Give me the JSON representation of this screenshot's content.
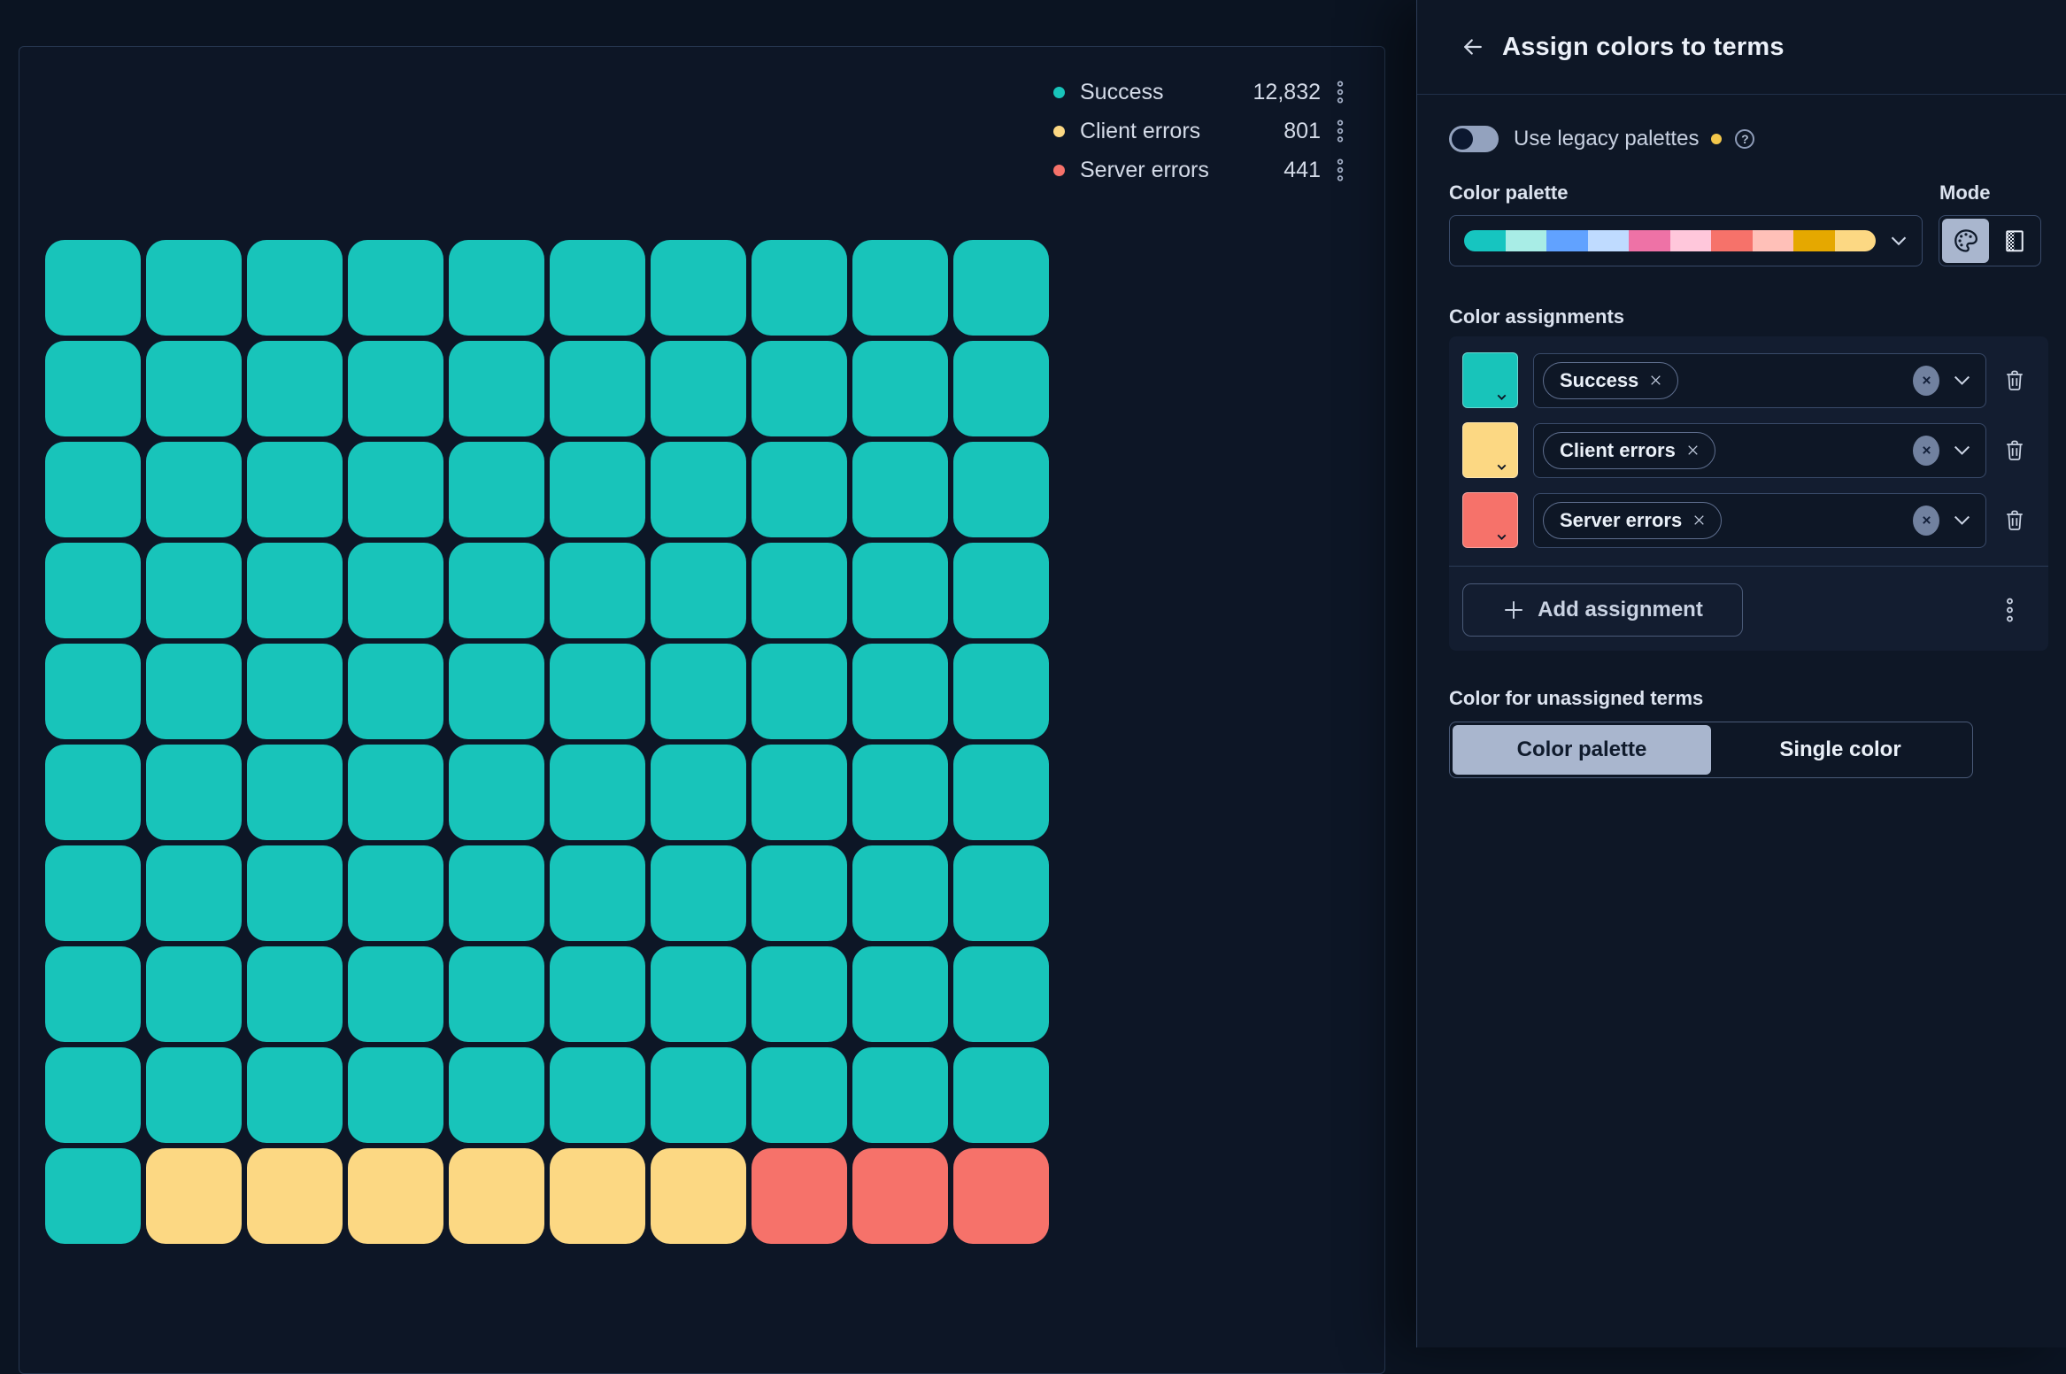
{
  "chart_data": {
    "type": "waffle",
    "title": "",
    "categories": [
      "Success",
      "Client errors",
      "Server errors"
    ],
    "values": [
      12832,
      801,
      441
    ],
    "value_labels": [
      "12,832",
      "801",
      "441"
    ],
    "colors": [
      "#18C4BA",
      "#FCD883",
      "#F6726A"
    ],
    "grid": {
      "rows": 10,
      "cols": 10,
      "cell_counts": [
        91,
        6,
        3
      ],
      "fill_order": "row-major-top-left"
    },
    "legend_position": "top-right"
  },
  "chart": {
    "legend": [
      {
        "label": "Success",
        "value": "12,832",
        "color": "#18C4BA"
      },
      {
        "label": "Client errors",
        "value": "801",
        "color": "#FCD883"
      },
      {
        "label": "Server errors",
        "value": "441",
        "color": "#F6726A"
      }
    ]
  },
  "flyout": {
    "title": "Assign colors to terms",
    "back_icon": "arrow-left",
    "legacy": {
      "label": "Use legacy palettes",
      "state": "off",
      "modified_dot_color": "#F3C74B",
      "help_icon": "?"
    },
    "palette": {
      "label": "Color palette",
      "colors": [
        "#16C5C0",
        "#A8EDE6",
        "#61A2FF",
        "#BFDBFF",
        "#EE72A6",
        "#FFC7DB",
        "#F6726A",
        "#FFC0B8",
        "#E5A800",
        "#FCD883"
      ]
    },
    "mode": {
      "label": "Mode",
      "options": [
        "palette",
        "gradient"
      ],
      "selected": "palette"
    },
    "assignments": {
      "label": "Color assignments",
      "rows": [
        {
          "swatch": "#18C4BA",
          "term": "Success"
        },
        {
          "swatch": "#FCD883",
          "term": "Client errors"
        },
        {
          "swatch": "#F6726A",
          "term": "Server errors"
        }
      ],
      "add_label": "Add assignment"
    },
    "unassigned": {
      "label": "Color for unassigned terms",
      "options": [
        "Color palette",
        "Single color"
      ],
      "selected": "Color palette"
    }
  }
}
